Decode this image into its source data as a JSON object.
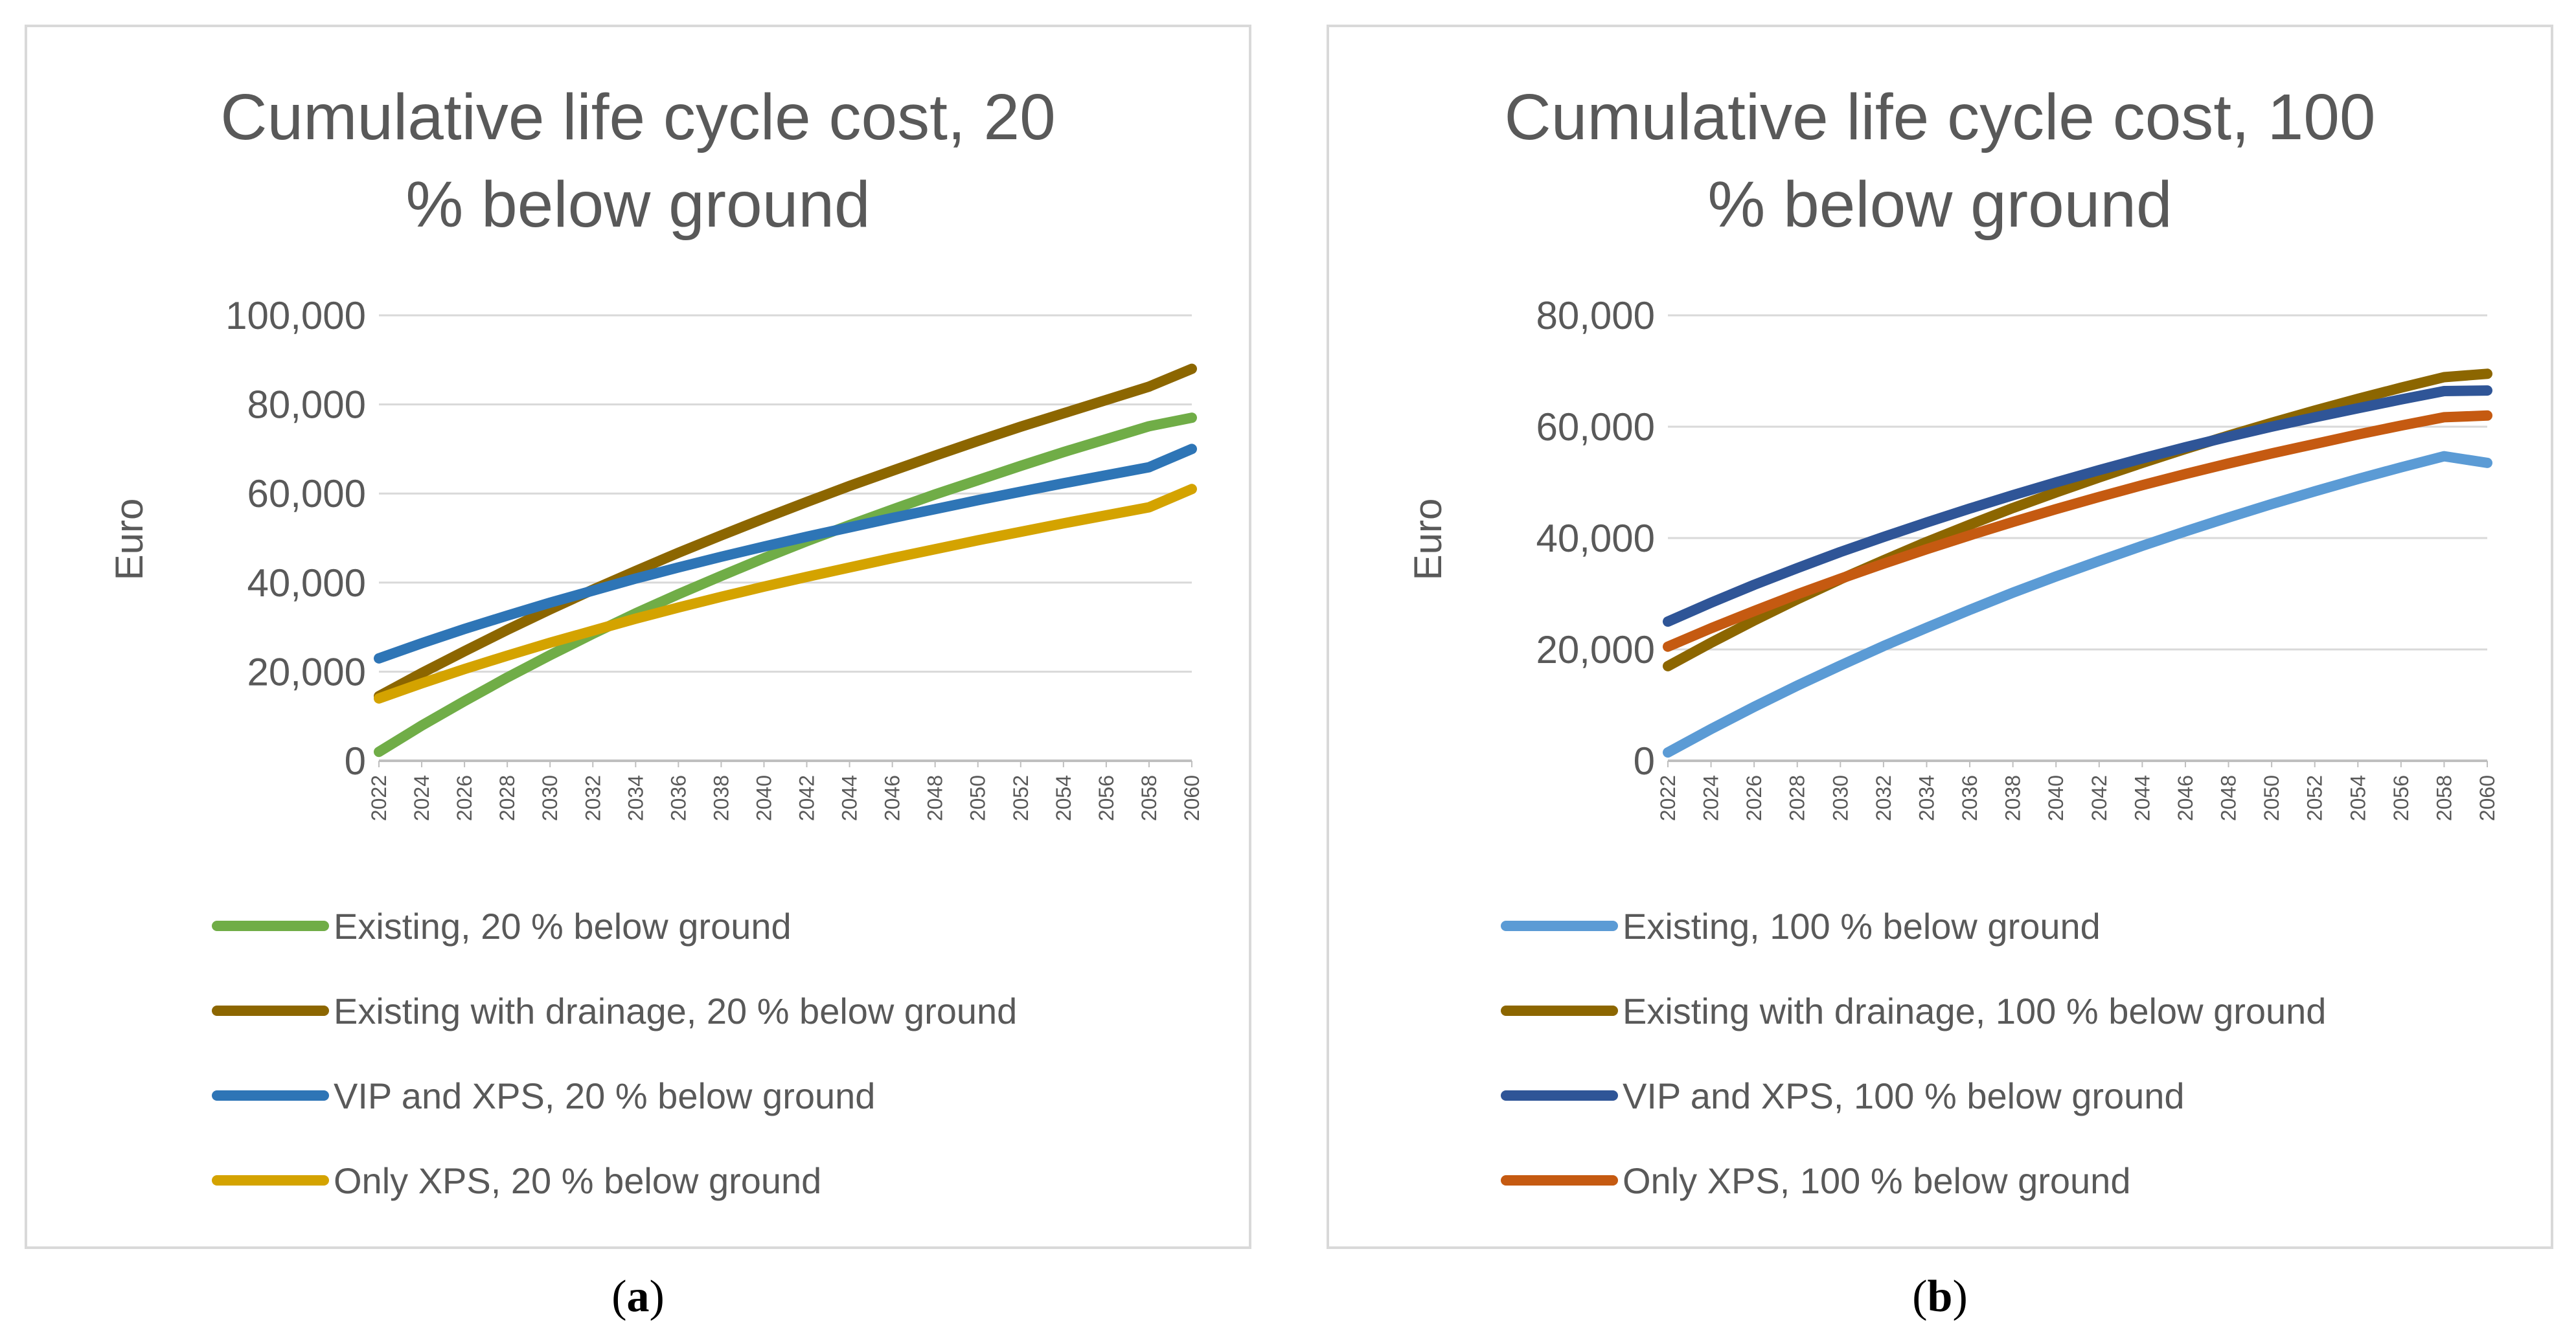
{
  "chart_data": [
    {
      "type": "line",
      "title_lines": [
        "Cumulative life cycle cost, 20",
        "% below ground"
      ],
      "caption": {
        "open": "(",
        "letter": "a",
        "close": ")"
      },
      "ylabel": "Euro",
      "xlabel": "",
      "ylim": [
        0,
        100000
      ],
      "yticks": [
        0,
        20000,
        40000,
        60000,
        80000,
        100000
      ],
      "ytick_labels": [
        "0",
        "20,000",
        "40,000",
        "60,000",
        "80,000",
        "100,000"
      ],
      "x": [
        2022,
        2024,
        2026,
        2028,
        2030,
        2032,
        2034,
        2036,
        2038,
        2040,
        2042,
        2044,
        2046,
        2048,
        2050,
        2052,
        2054,
        2056,
        2058,
        2060
      ],
      "grid": true,
      "legend_position": "bottom",
      "series": [
        {
          "name": "Existing, 20 % below ground",
          "color": "#70AD47",
          "values": [
            2000,
            7900,
            13400,
            18700,
            23700,
            28500,
            33100,
            37400,
            41500,
            45500,
            49300,
            52900,
            56400,
            59800,
            63000,
            66200,
            69300,
            72200,
            75100,
            77000
          ]
        },
        {
          "name": "Existing with drainage, 20 % below ground",
          "color": "#8C6600",
          "values": [
            14500,
            19700,
            24600,
            29400,
            34000,
            38400,
            42600,
            46700,
            50600,
            54400,
            58100,
            61700,
            65100,
            68500,
            71800,
            75000,
            78000,
            81000,
            84000,
            88000
          ]
        },
        {
          "name": "VIP and XPS, 20 % below ground",
          "color": "#2E75B6",
          "values": [
            23000,
            26400,
            29600,
            32600,
            35500,
            38200,
            40900,
            43400,
            45800,
            48100,
            50300,
            52400,
            54500,
            56500,
            58500,
            60400,
            62300,
            64100,
            65900,
            70000
          ]
        },
        {
          "name": "Only XPS, 20 % below ground",
          "color": "#D4A300",
          "values": [
            14000,
            17400,
            20600,
            23600,
            26500,
            29200,
            31900,
            34400,
            36800,
            39100,
            41300,
            43400,
            45500,
            47500,
            49500,
            51400,
            53300,
            55100,
            56900,
            61000
          ]
        }
      ]
    },
    {
      "type": "line",
      "title_lines": [
        "Cumulative life cycle cost, 100",
        "% below ground"
      ],
      "caption": {
        "open": "(",
        "letter": "b",
        "close": ")"
      },
      "ylabel": "Euro",
      "xlabel": "",
      "ylim": [
        0,
        80000
      ],
      "yticks": [
        0,
        20000,
        40000,
        60000,
        80000
      ],
      "ytick_labels": [
        "0",
        "20,000",
        "40,000",
        "60,000",
        "80,000"
      ],
      "x": [
        2022,
        2024,
        2026,
        2028,
        2030,
        2032,
        2034,
        2036,
        2038,
        2040,
        2042,
        2044,
        2046,
        2048,
        2050,
        2052,
        2054,
        2056,
        2058,
        2060
      ],
      "grid": true,
      "legend_position": "bottom",
      "series": [
        {
          "name": "Existing, 100 % below ground",
          "color": "#5B9BD5",
          "values": [
            1500,
            5700,
            9700,
            13500,
            17100,
            20600,
            23900,
            27100,
            30200,
            33100,
            35900,
            38600,
            41200,
            43700,
            46100,
            48400,
            50600,
            52700,
            54700,
            53500
          ]
        },
        {
          "name": "Existing with drainage, 100 % below ground",
          "color": "#8C6600",
          "values": [
            17000,
            21200,
            25200,
            29000,
            32600,
            36000,
            39300,
            42400,
            45400,
            48200,
            50900,
            53500,
            56000,
            58400,
            60700,
            62900,
            65000,
            67000,
            68900,
            69500
          ]
        },
        {
          "name": "VIP and XPS, 100 % below ground",
          "color": "#2F5597",
          "values": [
            25000,
            28400,
            31600,
            34600,
            37500,
            40200,
            42800,
            45300,
            47700,
            50000,
            52200,
            54300,
            56300,
            58200,
            60000,
            61700,
            63300,
            64900,
            66400,
            66500
          ]
        },
        {
          "name": "Only XPS, 100 % below ground",
          "color": "#C55A11",
          "values": [
            20500,
            23800,
            26900,
            29900,
            32700,
            35400,
            38000,
            40500,
            42900,
            45200,
            47400,
            49500,
            51500,
            53400,
            55200,
            56900,
            58600,
            60200,
            61700,
            62000
          ]
        }
      ]
    }
  ]
}
